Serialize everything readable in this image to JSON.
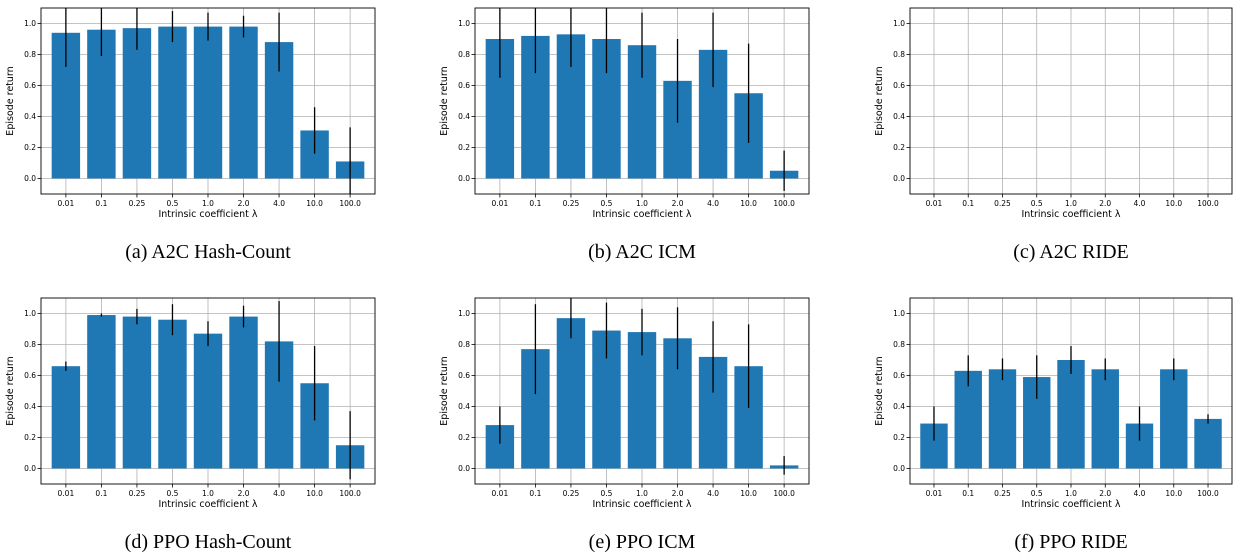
{
  "bar_color": "#1f77b4",
  "chart_data": [
    {
      "type": "bar",
      "caption": "(a) A2C Hash-Count",
      "categories": [
        "0.01",
        "0.1",
        "0.25",
        "0.5",
        "1.0",
        "2.0",
        "4.0",
        "10.0",
        "100.0"
      ],
      "values": [
        0.94,
        0.96,
        0.97,
        0.98,
        0.98,
        0.98,
        0.88,
        0.31,
        0.11
      ],
      "error": [
        0.22,
        0.17,
        0.14,
        0.1,
        0.09,
        0.07,
        0.19,
        0.15,
        0.22
      ],
      "xlabel": "Intrinsic coefficient λ",
      "ylabel": "Episode return",
      "ylim": [
        -0.1,
        1.1
      ],
      "yticks": [
        "0.0",
        "0.2",
        "0.4",
        "0.6",
        "0.8",
        "1.0"
      ],
      "grid": true
    },
    {
      "type": "bar",
      "caption": "(b) A2C ICM",
      "categories": [
        "0.01",
        "0.1",
        "0.25",
        "0.5",
        "1.0",
        "2.0",
        "4.0",
        "10.0",
        "100.0"
      ],
      "values": [
        0.9,
        0.92,
        0.93,
        0.9,
        0.86,
        0.63,
        0.83,
        0.55,
        0.05
      ],
      "error": [
        0.25,
        0.24,
        0.21,
        0.22,
        0.21,
        0.27,
        0.24,
        0.32,
        0.13
      ],
      "xlabel": "Intrinsic coefficient λ",
      "ylabel": "Episode return",
      "ylim": [
        -0.1,
        1.1
      ],
      "yticks": [
        "0.0",
        "0.2",
        "0.4",
        "0.6",
        "0.8",
        "1.0"
      ],
      "grid": true
    },
    {
      "type": "bar",
      "caption": "(c) A2C RIDE",
      "categories": [
        "0.01",
        "0.1",
        "0.25",
        "0.5",
        "1.0",
        "2.0",
        "4.0",
        "10.0",
        "100.0"
      ],
      "values": [
        0.0,
        0.0,
        0.0,
        0.0,
        0.0,
        0.0,
        0.0,
        0.0,
        0.0
      ],
      "error": [
        0.0,
        0.0,
        0.0,
        0.0,
        0.0,
        0.0,
        0.0,
        0.0,
        0.0
      ],
      "xlabel": "Intrinsic coefficient λ",
      "ylabel": "Episode return",
      "ylim": [
        -0.1,
        1.1
      ],
      "yticks": [
        "0.0",
        "0.2",
        "0.4",
        "0.6",
        "0.8",
        "1.0"
      ],
      "grid": true
    },
    {
      "type": "bar",
      "caption": "(d) PPO Hash-Count",
      "categories": [
        "0.01",
        "0.1",
        "0.25",
        "0.5",
        "1.0",
        "2.0",
        "4.0",
        "10.0",
        "100.0"
      ],
      "values": [
        0.66,
        0.99,
        0.98,
        0.96,
        0.87,
        0.98,
        0.82,
        0.55,
        0.15
      ],
      "error": [
        0.03,
        0.01,
        0.05,
        0.1,
        0.08,
        0.07,
        0.26,
        0.24,
        0.22
      ],
      "xlabel": "Intrinsic coefficient λ",
      "ylabel": "Episode return",
      "ylim": [
        -0.1,
        1.1
      ],
      "yticks": [
        "0.0",
        "0.2",
        "0.4",
        "0.6",
        "0.8",
        "1.0"
      ],
      "grid": true
    },
    {
      "type": "bar",
      "caption": "(e) PPO ICM",
      "categories": [
        "0.01",
        "0.1",
        "0.25",
        "0.5",
        "1.0",
        "2.0",
        "4.0",
        "10.0",
        "100.0"
      ],
      "values": [
        0.28,
        0.77,
        0.97,
        0.89,
        0.88,
        0.84,
        0.72,
        0.66,
        0.02
      ],
      "error": [
        0.12,
        0.29,
        0.13,
        0.18,
        0.15,
        0.2,
        0.23,
        0.27,
        0.06
      ],
      "xlabel": "Intrinsic coefficient λ",
      "ylabel": "Episode return",
      "ylim": [
        -0.1,
        1.1
      ],
      "yticks": [
        "0.0",
        "0.2",
        "0.4",
        "0.6",
        "0.8",
        "1.0"
      ],
      "grid": true
    },
    {
      "type": "bar",
      "caption": "(f) PPO RIDE",
      "categories": [
        "0.01",
        "0.1",
        "0.25",
        "0.5",
        "1.0",
        "2.0",
        "4.0",
        "10.0",
        "100.0"
      ],
      "values": [
        0.29,
        0.63,
        0.64,
        0.59,
        0.7,
        0.64,
        0.29,
        0.64,
        0.32
      ],
      "error": [
        0.11,
        0.1,
        0.07,
        0.14,
        0.09,
        0.07,
        0.11,
        0.07,
        0.03
      ],
      "xlabel": "Intrinsic coefficient λ",
      "ylabel": "Episode return",
      "ylim": [
        -0.1,
        1.1
      ],
      "yticks": [
        "0.0",
        "0.2",
        "0.4",
        "0.6",
        "0.8",
        "1.0"
      ],
      "grid": true
    }
  ]
}
